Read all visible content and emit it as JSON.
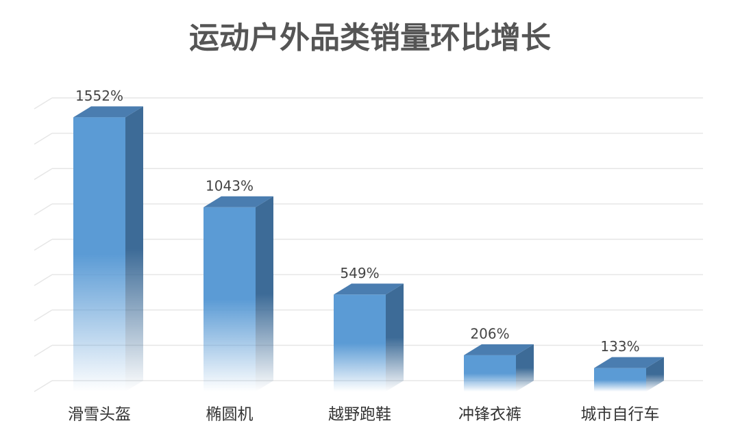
{
  "chart_data": {
    "type": "bar3d",
    "title": "运动户外品类销量环比增长",
    "categories": [
      "滑雪头盔",
      "椭圆机",
      "越野跑鞋",
      "冲锋衣裤",
      "城市自行车"
    ],
    "values": [
      1552,
      1043,
      549,
      206,
      133
    ],
    "value_labels": [
      "1552%",
      "1043%",
      "549%",
      "206%",
      "133%"
    ],
    "color": "#5b9bd5",
    "ylim": [
      0,
      1600
    ],
    "yticks": [
      0,
      200,
      400,
      600,
      800,
      1000,
      1200,
      1400,
      1600
    ],
    "grid": true
  }
}
